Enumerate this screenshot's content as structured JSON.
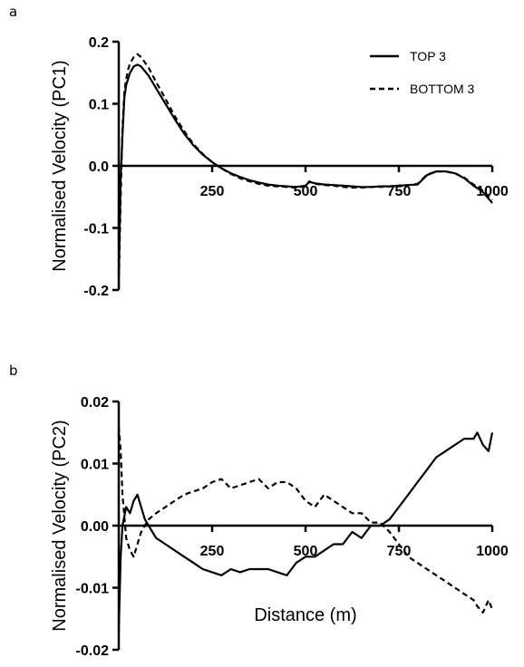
{
  "chart_data": [
    {
      "panel_label": "a",
      "type": "line",
      "xlabel": "",
      "ylabel": "Normalised Velocity (PC1)",
      "xlim": [
        0,
        1000
      ],
      "ylim": [
        -0.2,
        0.2
      ],
      "xticks": [
        250,
        500,
        750,
        1000
      ],
      "xtick_labels": [
        "250",
        "500",
        "750",
        "1000"
      ],
      "yticks": [
        -0.2,
        -0.1,
        0.0,
        0.1,
        0.2
      ],
      "ytick_labels": [
        "-0.2",
        "-0.1",
        "0.0",
        "0.1",
        "0.2"
      ],
      "legend_position": "top-right",
      "grid": false,
      "series": [
        {
          "name": "TOP 3",
          "style": "solid",
          "color": "#000000",
          "x": [
            0,
            5,
            10,
            15,
            20,
            25,
            30,
            40,
            50,
            60,
            80,
            100,
            125,
            150,
            175,
            200,
            225,
            250,
            275,
            300,
            325,
            350,
            375,
            400,
            425,
            450,
            475,
            500,
            510,
            525,
            550,
            575,
            600,
            625,
            650,
            675,
            700,
            725,
            750,
            775,
            800,
            825,
            850,
            875,
            900,
            925,
            950,
            975,
            1000
          ],
          "y": [
            -0.175,
            -0.02,
            0.05,
            0.11,
            0.13,
            0.14,
            0.15,
            0.16,
            0.163,
            0.16,
            0.145,
            0.125,
            0.1,
            0.075,
            0.052,
            0.033,
            0.018,
            0.006,
            -0.004,
            -0.012,
            -0.018,
            -0.023,
            -0.027,
            -0.03,
            -0.032,
            -0.033,
            -0.034,
            -0.032,
            -0.026,
            -0.028,
            -0.03,
            -0.031,
            -0.032,
            -0.033,
            -0.034,
            -0.034,
            -0.033,
            -0.033,
            -0.032,
            -0.031,
            -0.03,
            -0.015,
            -0.009,
            -0.009,
            -0.012,
            -0.02,
            -0.032,
            -0.042,
            -0.06
          ]
        },
        {
          "name": "BOTTOM 3",
          "style": "dashed",
          "color": "#000000",
          "x": [
            0,
            5,
            10,
            15,
            20,
            25,
            30,
            40,
            50,
            60,
            80,
            100,
            125,
            150,
            175,
            200,
            225,
            250,
            275,
            300,
            325,
            350,
            375,
            400,
            425,
            450,
            475,
            500,
            510,
            525,
            550,
            575,
            600,
            625,
            650,
            675,
            700,
            725,
            750,
            775,
            800,
            825,
            850,
            875,
            900,
            925,
            950,
            975,
            1000
          ],
          "y": [
            -0.195,
            -0.05,
            0.06,
            0.12,
            0.14,
            0.155,
            0.165,
            0.175,
            0.18,
            0.175,
            0.158,
            0.135,
            0.108,
            0.08,
            0.056,
            0.035,
            0.019,
            0.006,
            -0.004,
            -0.013,
            -0.02,
            -0.025,
            -0.029,
            -0.032,
            -0.033,
            -0.034,
            -0.035,
            -0.033,
            -0.025,
            -0.029,
            -0.031,
            -0.032,
            -0.034,
            -0.035,
            -0.035,
            -0.034,
            -0.034,
            -0.033,
            -0.032,
            -0.031,
            -0.029,
            -0.014,
            -0.009,
            -0.009,
            -0.012,
            -0.019,
            -0.03,
            -0.04,
            -0.055
          ]
        }
      ]
    },
    {
      "panel_label": "b",
      "type": "line",
      "xlabel": "Distance (m)",
      "ylabel": "Normalised Velocity (PC2)",
      "xlim": [
        0,
        1000
      ],
      "ylim": [
        -0.02,
        0.02
      ],
      "xticks": [
        250,
        500,
        750,
        1000
      ],
      "xtick_labels": [
        "250",
        "500",
        "750",
        "1000"
      ],
      "yticks": [
        -0.02,
        -0.01,
        0.0,
        0.01,
        0.02
      ],
      "ytick_labels": [
        "-0.02",
        "-0.01",
        "0.00",
        "0.01",
        "0.02"
      ],
      "grid": false,
      "series": [
        {
          "name": "TOP 3",
          "style": "solid",
          "color": "#000000",
          "x": [
            0,
            5,
            10,
            20,
            30,
            40,
            50,
            60,
            70,
            80,
            90,
            100,
            125,
            150,
            175,
            200,
            225,
            250,
            275,
            300,
            325,
            350,
            375,
            400,
            425,
            450,
            475,
            500,
            525,
            550,
            575,
            600,
            625,
            650,
            675,
            700,
            725,
            750,
            775,
            800,
            825,
            850,
            875,
            900,
            925,
            950,
            960,
            975,
            990,
            1000
          ],
          "y": [
            -0.017,
            -0.005,
            0.0,
            0.003,
            0.002,
            0.004,
            0.005,
            0.003,
            0.001,
            0.0,
            -0.001,
            -0.002,
            -0.003,
            -0.004,
            -0.005,
            -0.006,
            -0.007,
            -0.0075,
            -0.008,
            -0.007,
            -0.0075,
            -0.007,
            -0.007,
            -0.007,
            -0.0075,
            -0.008,
            -0.006,
            -0.005,
            -0.005,
            -0.004,
            -0.003,
            -0.003,
            -0.001,
            -0.002,
            0.0,
            0.0,
            0.001,
            0.003,
            0.005,
            0.007,
            0.009,
            0.011,
            0.012,
            0.013,
            0.014,
            0.014,
            0.015,
            0.013,
            0.012,
            0.015
          ]
        },
        {
          "name": "BOTTOM 3",
          "style": "dashed",
          "color": "#000000",
          "x": [
            0,
            5,
            10,
            20,
            30,
            40,
            50,
            60,
            70,
            80,
            90,
            100,
            125,
            150,
            175,
            200,
            225,
            250,
            275,
            300,
            325,
            350,
            375,
            400,
            425,
            450,
            475,
            500,
            525,
            550,
            575,
            600,
            625,
            650,
            675,
            700,
            725,
            750,
            775,
            800,
            825,
            850,
            875,
            900,
            925,
            950,
            960,
            975,
            990,
            1000
          ],
          "y": [
            0.016,
            0.012,
            0.005,
            -0.002,
            -0.004,
            -0.005,
            -0.003,
            -0.001,
            0.0,
            0.001,
            0.0015,
            0.002,
            0.003,
            0.004,
            0.005,
            0.0055,
            0.006,
            0.007,
            0.0075,
            0.006,
            0.0065,
            0.007,
            0.0075,
            0.006,
            0.007,
            0.007,
            0.006,
            0.004,
            0.003,
            0.005,
            0.004,
            0.003,
            0.002,
            0.002,
            0.0005,
            0.0005,
            -0.001,
            -0.003,
            -0.005,
            -0.006,
            -0.007,
            -0.008,
            -0.009,
            -0.01,
            -0.011,
            -0.012,
            -0.013,
            -0.014,
            -0.012,
            -0.0135
          ]
        }
      ]
    }
  ]
}
